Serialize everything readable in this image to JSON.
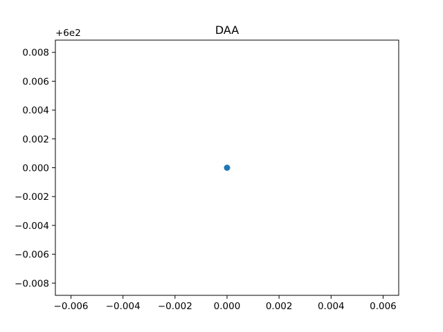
{
  "chart_data": {
    "type": "scatter",
    "title": "DAA",
    "xlabel": "",
    "ylabel": "",
    "series": [
      {
        "color": "#1f77b4",
        "points": [
          {
            "x": 0.0,
            "y": 600.0
          }
        ]
      }
    ],
    "xlim": [
      -0.0066,
      0.0066
    ],
    "ylim": [
      599.99115,
      600.00885
    ],
    "y_offset_label": "+6e2",
    "y_offset_value": 600,
    "x_ticks": [
      {
        "value": -0.006,
        "label": "−0.006"
      },
      {
        "value": -0.004,
        "label": "−0.004"
      },
      {
        "value": -0.002,
        "label": "−0.002"
      },
      {
        "value": 0.0,
        "label": "0.000"
      },
      {
        "value": 0.002,
        "label": "0.002"
      },
      {
        "value": 0.004,
        "label": "0.004"
      },
      {
        "value": 0.006,
        "label": "0.006"
      }
    ],
    "y_ticks": [
      {
        "value": -0.008,
        "label": "−0.008"
      },
      {
        "value": -0.006,
        "label": "−0.006"
      },
      {
        "value": -0.004,
        "label": "−0.004"
      },
      {
        "value": -0.002,
        "label": "−0.002"
      },
      {
        "value": 0.0,
        "label": "0.000"
      },
      {
        "value": 0.002,
        "label": "0.002"
      },
      {
        "value": 0.004,
        "label": "0.004"
      },
      {
        "value": 0.006,
        "label": "0.006"
      },
      {
        "value": 0.008,
        "label": "0.008"
      }
    ],
    "grid": false,
    "legend": "none"
  }
}
